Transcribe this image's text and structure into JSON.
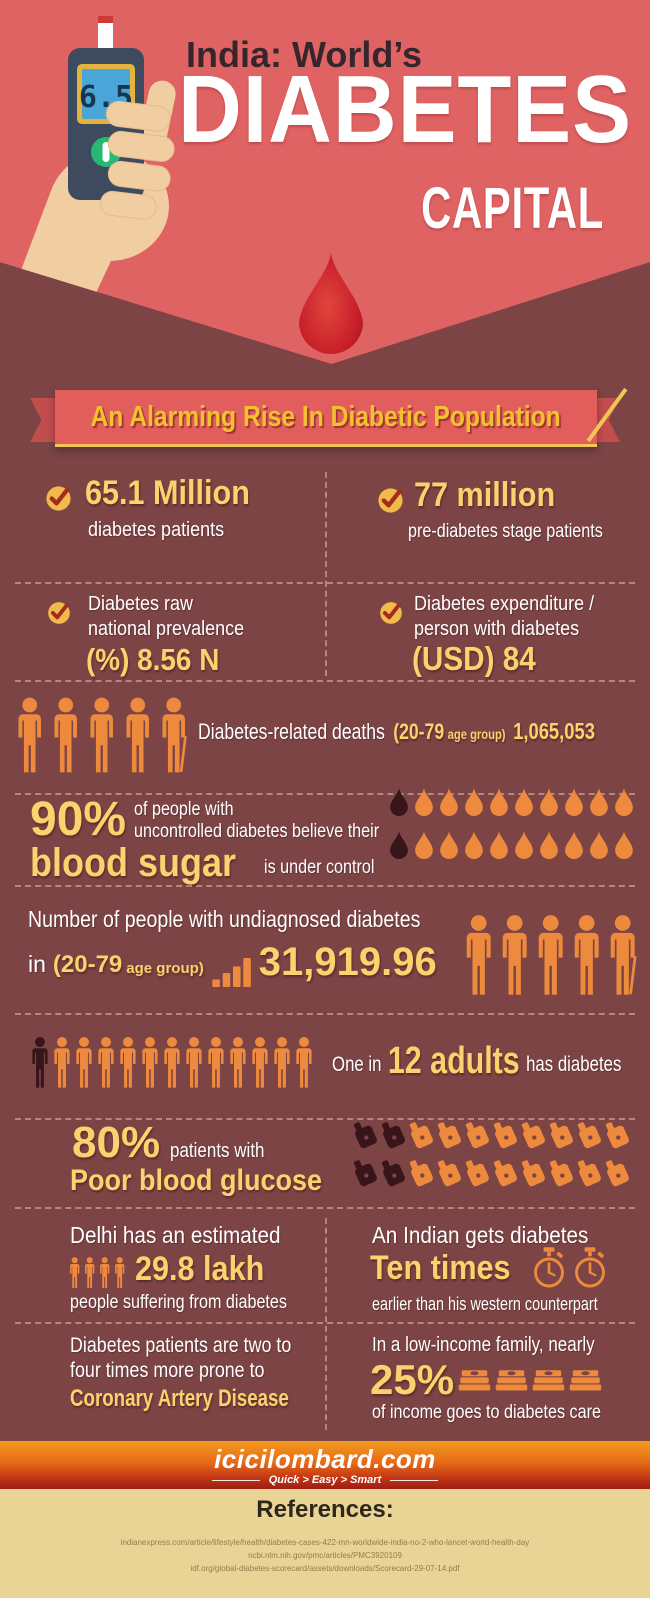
{
  "colors": {
    "bg_top": "#e06363",
    "bg_main": "#7c4444",
    "accent_yellow": "#fbd36e",
    "banner_text": "#f2c12e",
    "icon_orange": "#ee8a3d",
    "icon_dark": "#38151b",
    "footer_top": "#f0931e",
    "footer_bottom": "#9e1c12",
    "references_bg": "#e8d494"
  },
  "icons": {
    "check": "check-icon",
    "person": "person-icon",
    "drop": "blood-drop-icon",
    "meter": "glucometer-icon",
    "watch": "stopwatch-icon",
    "money": "cash-stack-icon",
    "barchart": "bar-chart-icon"
  },
  "header": {
    "kicker": "India: World’s",
    "title": "DIABETES",
    "subtitle": "CAPITAL",
    "meter_reading": "6.5"
  },
  "banner": {
    "text": "An Alarming Rise In Diabetic Population"
  },
  "stats": [
    {
      "value": "65.1 Million",
      "label": "diabetes patients"
    },
    {
      "value": "77 million",
      "label": "pre-diabetes stage patients"
    },
    {
      "label1": "Diabetes raw",
      "label2": "national prevalence",
      "value": "(%) 8.56 N"
    },
    {
      "label1": "Diabetes expenditure /",
      "label2": "person with diabetes",
      "value": "(USD) 84"
    }
  ],
  "deaths": {
    "label": "Diabetes-related deaths",
    "age_big": "(20-79",
    "age_small": "age group)",
    "value": "1,065,053",
    "icons": [
      "orange",
      "orange",
      "orange",
      "orange",
      "orange-cane"
    ]
  },
  "blood_sugar": {
    "pct": "90%",
    "line1": "of people with",
    "line2": "uncontrolled diabetes believe their",
    "highlight": "blood sugar",
    "tail": "is under control",
    "drops_row1": [
      "dark",
      "orange",
      "orange",
      "orange",
      "orange",
      "orange",
      "orange",
      "orange",
      "orange",
      "orange"
    ],
    "drops_row2": [
      "dark",
      "orange",
      "orange",
      "orange",
      "orange",
      "orange",
      "orange",
      "orange",
      "orange",
      "orange"
    ]
  },
  "undiagnosed": {
    "line1": "Number of people with undiagnosed diabetes",
    "prefix": "in",
    "age_big": "(20-79",
    "age_small": "age group)",
    "value": "31,919.96",
    "icons": [
      "orange",
      "orange",
      "orange",
      "orange",
      "orange-cane"
    ]
  },
  "adults": {
    "prefix": "One in",
    "value": "12 adults",
    "suffix": "has diabetes",
    "icons": [
      "dark",
      "orange",
      "orange",
      "orange",
      "orange",
      "orange",
      "orange",
      "orange",
      "orange",
      "orange",
      "orange",
      "orange",
      "orange"
    ]
  },
  "glucose": {
    "pct": "80%",
    "label": "patients with",
    "highlight": "Poor blood glucose",
    "meters_row1": [
      "dark",
      "dark",
      "orange",
      "orange",
      "orange",
      "orange",
      "orange",
      "orange",
      "orange",
      "orange"
    ],
    "meters_row2": [
      "dark",
      "dark",
      "orange",
      "orange",
      "orange",
      "orange",
      "orange",
      "orange",
      "orange",
      "orange"
    ]
  },
  "grid": {
    "delhi": {
      "line1": "Delhi has an estimated",
      "value": "29.8 lakh",
      "line2": "people suffering from diabetes",
      "icons": [
        "orange",
        "orange",
        "orange",
        "orange"
      ]
    },
    "ten_times": {
      "line1": "An Indian gets diabetes",
      "value": "Ten times",
      "line2": "earlier than his western counterpart",
      "icons": [
        "orange",
        "orange"
      ]
    },
    "coronary": {
      "line1": "Diabetes patients are two to",
      "line2": "four times more prone to",
      "highlight": "Coronary Artery Disease"
    },
    "income": {
      "line1": "In a low-income family, nearly",
      "value": "25%",
      "line2": "of income goes to diabetes care",
      "icons": [
        "orange",
        "orange",
        "orange",
        "orange"
      ]
    }
  },
  "footer": {
    "brand": "icicilombard.com",
    "tagline": "Quick  >  Easy  >  Smart"
  },
  "references": {
    "title": "References:",
    "items": [
      "indianexpress.com/article/lifestyle/health/diabetes-cases-422-mn-worldwide-india-no-2-who-lancet-world-health-day",
      "ncbi.nlm.nih.gov/pmc/articles/PMC3920109",
      "idf.org/global-diabetes-scorecard/assets/downloads/Scorecard-29-07-14.pdf"
    ]
  }
}
